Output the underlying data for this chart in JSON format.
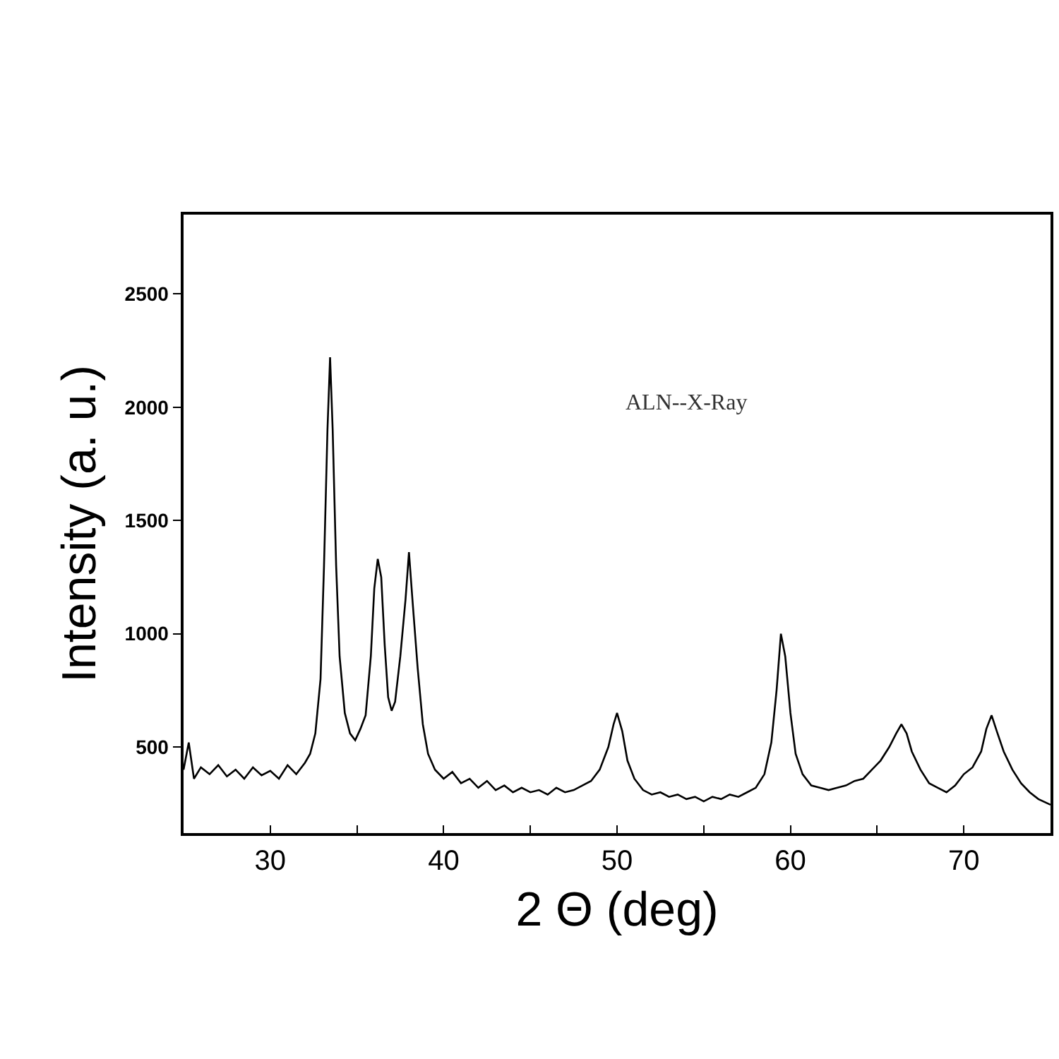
{
  "chart_data": {
    "type": "line",
    "xlabel": "2 Θ (deg)",
    "ylabel": "Intensity (a. u.)",
    "annotations": [
      "ALN--X-Ray"
    ],
    "x": [
      25.0,
      25.3,
      25.6,
      26.0,
      26.5,
      27.0,
      27.5,
      28.0,
      28.5,
      29.0,
      29.5,
      30.0,
      30.5,
      31.0,
      31.5,
      32.0,
      32.3,
      32.6,
      32.9,
      33.1,
      33.3,
      33.45,
      33.6,
      33.8,
      34.0,
      34.3,
      34.6,
      34.9,
      35.2,
      35.5,
      35.8,
      36.0,
      36.2,
      36.4,
      36.6,
      36.8,
      37.0,
      37.2,
      37.5,
      37.8,
      38.0,
      38.2,
      38.5,
      38.8,
      39.1,
      39.5,
      40.0,
      40.5,
      41.0,
      41.5,
      42.0,
      42.5,
      43.0,
      43.5,
      44.0,
      44.5,
      45.0,
      45.5,
      46.0,
      46.5,
      47.0,
      47.5,
      48.0,
      48.5,
      49.0,
      49.5,
      49.8,
      50.0,
      50.3,
      50.6,
      51.0,
      51.5,
      52.0,
      52.5,
      53.0,
      53.5,
      54.0,
      54.5,
      55.0,
      55.5,
      56.0,
      56.5,
      57.0,
      57.5,
      58.0,
      58.5,
      58.9,
      59.2,
      59.45,
      59.7,
      60.0,
      60.3,
      60.7,
      61.2,
      61.7,
      62.2,
      62.7,
      63.2,
      63.7,
      64.2,
      64.7,
      65.2,
      65.7,
      66.1,
      66.4,
      66.7,
      67.0,
      67.5,
      68.0,
      68.5,
      69.0,
      69.5,
      70.0,
      70.5,
      71.0,
      71.3,
      71.6,
      71.9,
      72.3,
      72.8,
      73.3,
      73.8,
      74.3,
      75.0
    ],
    "series": [
      {
        "color": "#000000",
        "values": [
          400,
          520,
          360,
          410,
          380,
          420,
          370,
          400,
          360,
          410,
          375,
          395,
          360,
          420,
          380,
          430,
          470,
          560,
          800,
          1300,
          1900,
          2220,
          1900,
          1300,
          900,
          650,
          560,
          530,
          580,
          640,
          900,
          1200,
          1330,
          1250,
          950,
          720,
          660,
          700,
          900,
          1150,
          1360,
          1150,
          850,
          600,
          470,
          400,
          360,
          390,
          340,
          360,
          320,
          350,
          310,
          330,
          300,
          320,
          300,
          310,
          290,
          320,
          300,
          310,
          330,
          350,
          400,
          500,
          600,
          650,
          570,
          440,
          360,
          310,
          290,
          300,
          280,
          290,
          270,
          280,
          260,
          280,
          270,
          290,
          280,
          300,
          320,
          380,
          520,
          750,
          1000,
          900,
          650,
          470,
          380,
          330,
          320,
          310,
          320,
          330,
          350,
          360,
          400,
          440,
          500,
          560,
          600,
          560,
          480,
          400,
          340,
          320,
          300,
          330,
          380,
          410,
          480,
          580,
          640,
          570,
          480,
          400,
          340,
          300,
          270,
          245
        ]
      }
    ],
    "xlim": [
      25,
      75
    ],
    "ylim": [
      120,
      2850
    ],
    "xticks": [
      30,
      {
        "value": 35,
        "label": null
      },
      40,
      {
        "value": 45,
        "label": null
      },
      50,
      {
        "value": 55,
        "label": null
      },
      60,
      {
        "value": 65,
        "label": null
      },
      70
    ],
    "yticks": [
      500,
      1000,
      1500,
      2000,
      2500
    ],
    "marker": "none",
    "line_style": "solid"
  }
}
